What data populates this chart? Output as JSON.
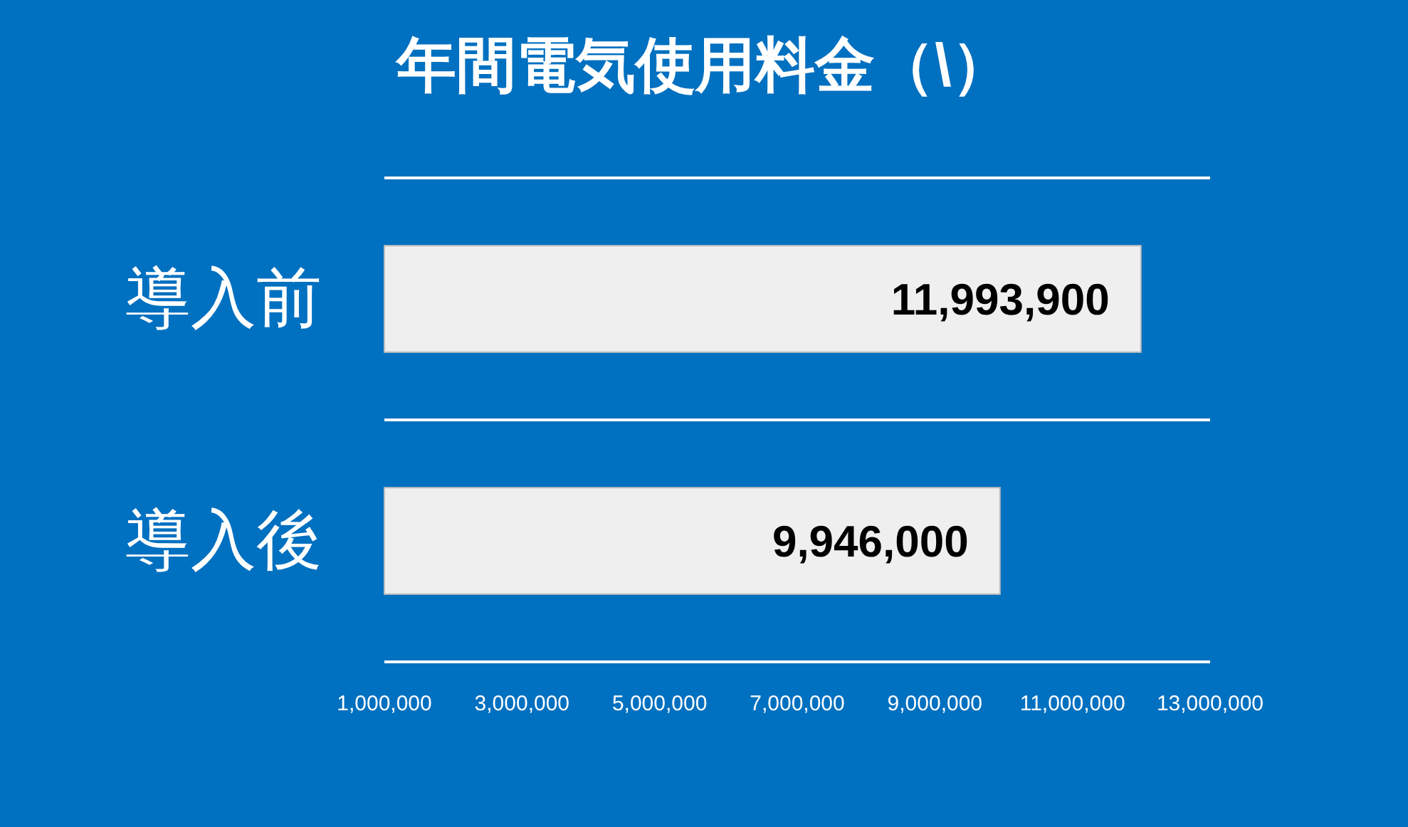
{
  "chart_data": {
    "type": "bar",
    "orientation": "horizontal",
    "title": "年間電気使用料金（\\）",
    "categories": [
      "導入前",
      "導入後"
    ],
    "values": [
      11993900,
      9946000
    ],
    "color": "#efefef",
    "value_labels": [
      "11,993,900",
      "9,946,000"
    ],
    "xlim": [
      1000000,
      13000000
    ],
    "xticks": [
      {
        "value": 1000000,
        "label": "1,000,000"
      },
      {
        "value": 3000000,
        "label": "3,000,000"
      },
      {
        "value": 5000000,
        "label": "5,000,000"
      },
      {
        "value": 7000000,
        "label": "7,000,000"
      },
      {
        "value": 9000000,
        "label": "9,000,000"
      },
      {
        "value": 11000000,
        "label": "11,000,000"
      },
      {
        "value": 13000000,
        "label": "13,000,000"
      }
    ],
    "grid": "y"
  }
}
